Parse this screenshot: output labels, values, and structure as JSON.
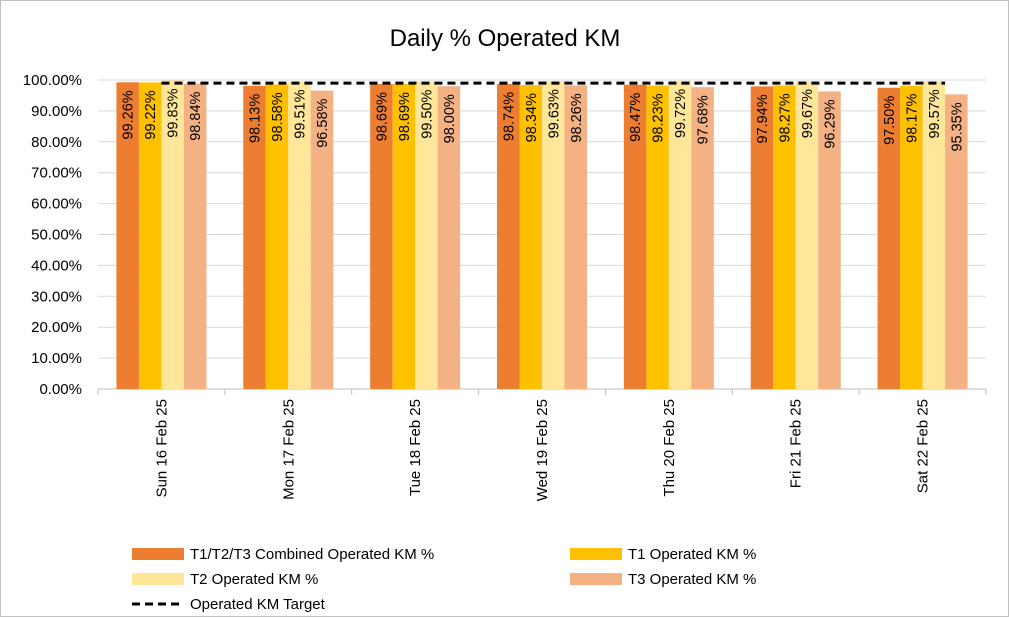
{
  "chart_data": {
    "type": "bar",
    "title": "Daily % Operated KM",
    "categories": [
      "Sun 16 Feb 25",
      "Mon 17 Feb 25",
      "Tue 18 Feb 25",
      "Wed 19 Feb 25",
      "Thu 20 Feb 25",
      "Fri 21 Feb 25",
      "Sat 22 Feb 25"
    ],
    "series": [
      {
        "name": "T1/T2/T3 Combined Operated KM %",
        "color": "#ed7d31",
        "values": [
          99.26,
          98.13,
          98.69,
          98.74,
          98.47,
          97.94,
          97.5
        ],
        "labels": [
          "99.26%",
          "98.13%",
          "98.69%",
          "98.74%",
          "98.47%",
          "97.94%",
          "97.50%"
        ]
      },
      {
        "name": "T1 Operated KM %",
        "color": "#ffc000",
        "values": [
          99.22,
          98.58,
          98.69,
          98.34,
          98.23,
          98.27,
          98.17
        ],
        "labels": [
          "99.22%",
          "98.58%",
          "98.69%",
          "98.34%",
          "98.23%",
          "98.27%",
          "98.17%"
        ]
      },
      {
        "name": "T2 Operated KM %",
        "color": "#ffe699",
        "values": [
          99.83,
          99.51,
          99.5,
          99.63,
          99.72,
          99.67,
          99.57
        ],
        "labels": [
          "99.83%",
          "99.51%",
          "99.50%",
          "99.63%",
          "99.72%",
          "99.67%",
          "99.57%"
        ]
      },
      {
        "name": "T3 Operated KM %",
        "color": "#f4b183",
        "values": [
          98.84,
          96.58,
          98.0,
          98.26,
          97.68,
          96.29,
          95.35
        ],
        "labels": [
          "98.84%",
          "96.58%",
          "98.00%",
          "98.26%",
          "97.68%",
          "96.29%",
          "95.35%"
        ]
      }
    ],
    "target": {
      "name": "Operated KM Target",
      "value": 99,
      "style": "dashed",
      "color": "#000000"
    },
    "ylim": [
      0,
      100
    ],
    "yticks": [
      "0.00%",
      "10.00%",
      "20.00%",
      "30.00%",
      "40.00%",
      "50.00%",
      "60.00%",
      "70.00%",
      "80.00%",
      "90.00%",
      "100.00%"
    ],
    "grid": true,
    "legend_position": "bottom"
  }
}
